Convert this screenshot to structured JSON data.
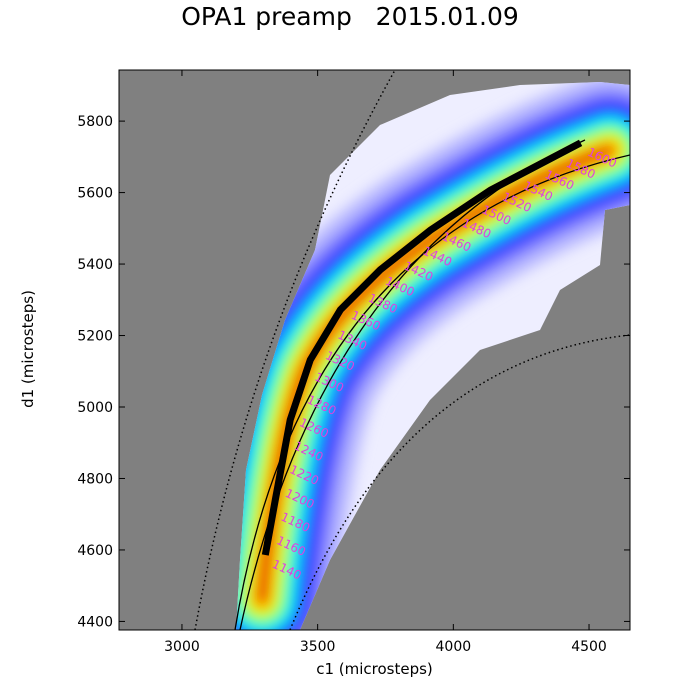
{
  "chart_data": {
    "type": "heatmap",
    "title": "OPA1 preamp   2015.01.09",
    "xlabel": "c1 (microsteps)",
    "ylabel": "d1 (microsteps)",
    "xlim": [
      2768,
      4651
    ],
    "ylim": [
      4376,
      5943
    ],
    "xticks": [
      3000,
      3500,
      4000,
      4500
    ],
    "yticks": [
      4400,
      4600,
      4800,
      5000,
      5200,
      5400,
      5600,
      5800
    ],
    "grid": false,
    "colormap": "jet-like (white-blue-cyan-green-yellow-red)",
    "background_color": "#808080",
    "contour_color": "#808080",
    "contour_label_color": "#e040e0",
    "contour_labels": [
      "1140",
      "1160",
      "1180",
      "1200",
      "1220",
      "1240",
      "1260",
      "1280",
      "1300",
      "1320",
      "1340",
      "1360",
      "1380",
      "1400",
      "1420",
      "1440",
      "1460",
      "1480",
      "1500",
      "1520",
      "1540",
      "1560",
      "1580",
      "1600"
    ],
    "fit_curve": {
      "x": [
        3307,
        3344,
        3399,
        3473,
        3584,
        3731,
        3916,
        4137,
        4469
      ],
      "y": [
        4586,
        4740,
        4964,
        5132,
        5272,
        5384,
        5495,
        5607,
        5739
      ]
    }
  }
}
